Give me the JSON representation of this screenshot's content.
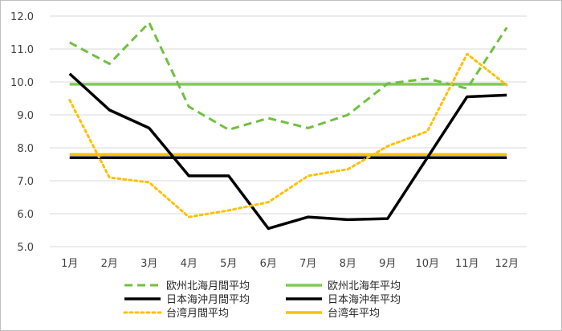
{
  "chart_data": {
    "type": "line",
    "title": "",
    "xlabel": "",
    "ylabel": "",
    "categories": [
      "1月",
      "2月",
      "3月",
      "4月",
      "5月",
      "6月",
      "7月",
      "8月",
      "9月",
      "10月",
      "11月",
      "12月"
    ],
    "ylim": [
      5.0,
      12.0
    ],
    "yticks": [
      "5.0",
      "6.0",
      "7.0",
      "8.0",
      "9.0",
      "10.0",
      "11.0",
      "12.0"
    ],
    "grid": "horizontal",
    "legend_position": "bottom",
    "series": [
      {
        "name": "欧州北海月間平均",
        "values": [
          11.2,
          10.55,
          11.8,
          9.25,
          8.55,
          8.9,
          8.6,
          9.0,
          9.95,
          10.1,
          9.8,
          11.65
        ],
        "color": "#70c040",
        "style": "dashed"
      },
      {
        "name": "欧州北海年平均",
        "values": [
          9.93,
          9.93,
          9.93,
          9.93,
          9.93,
          9.93,
          9.93,
          9.93,
          9.93,
          9.93,
          9.93,
          9.93
        ],
        "color": "#80cc50",
        "style": "solid"
      },
      {
        "name": "日本海沖月間平均",
        "values": [
          10.25,
          9.15,
          8.6,
          7.15,
          7.15,
          5.55,
          5.9,
          5.82,
          5.85,
          7.7,
          9.55,
          9.6
        ],
        "color": "#000000",
        "style": "solid"
      },
      {
        "name": "日本海沖年平均",
        "values": [
          7.7,
          7.7,
          7.7,
          7.7,
          7.7,
          7.7,
          7.7,
          7.7,
          7.7,
          7.7,
          7.7,
          7.7
        ],
        "color": "#000000",
        "style": "solid"
      },
      {
        "name": "台湾月間平均",
        "values": [
          9.45,
          7.1,
          6.95,
          5.9,
          6.1,
          6.35,
          7.15,
          7.35,
          8.05,
          8.5,
          10.85,
          9.9
        ],
        "color": "#ffc000",
        "style": "dotted"
      },
      {
        "name": "台湾年平均",
        "values": [
          7.8,
          7.8,
          7.8,
          7.8,
          7.8,
          7.8,
          7.8,
          7.8,
          7.8,
          7.8,
          7.8,
          7.8
        ],
        "color": "#ffc000",
        "style": "solid"
      }
    ]
  }
}
